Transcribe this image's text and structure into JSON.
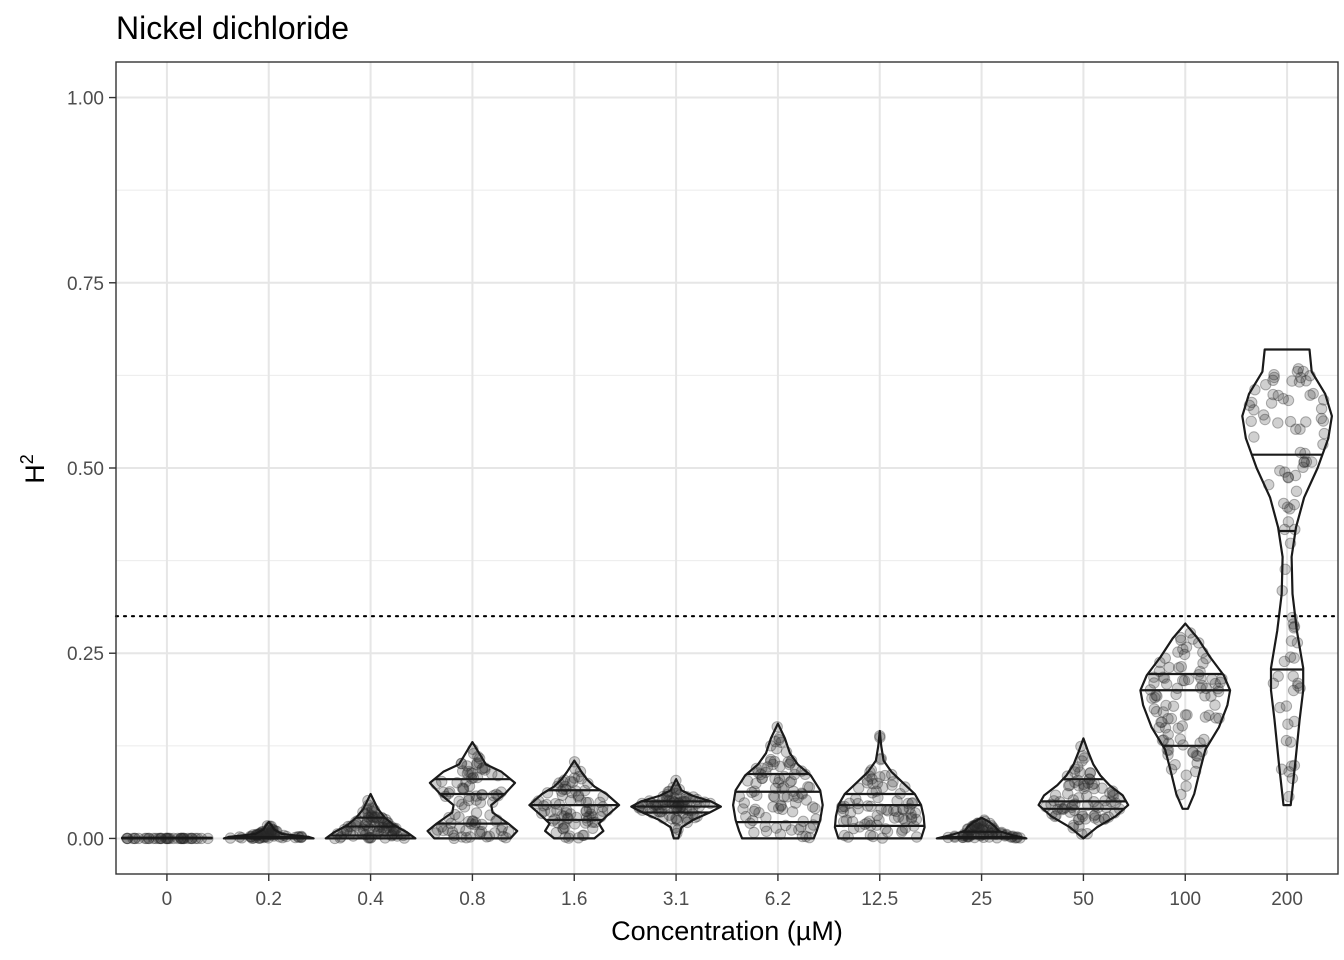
{
  "chart_data": {
    "type": "violin",
    "title": "Nickel dichloride",
    "xlabel": "Concentration (µM)",
    "ylabel": "H",
    "ylabel_superscript": "2",
    "ylim": [
      -0.048,
      1.048
    ],
    "yticks": [
      "0.00",
      "0.25",
      "0.50",
      "0.75",
      "1.00"
    ],
    "ytick_values": [
      0,
      0.25,
      0.5,
      0.75,
      1.0
    ],
    "grid": true,
    "reference_line": {
      "y": 0.3,
      "style": "dotted"
    },
    "categories": [
      "0",
      "0.2",
      "0.4",
      "0.8",
      "1.6",
      "3.1",
      "6.2",
      "12.5",
      "25",
      "50",
      "100",
      "200"
    ],
    "groups": [
      {
        "category": "0",
        "min": 0.0,
        "max": 0.0,
        "quartiles": [
          0.0,
          0.0,
          0.0
        ],
        "profile": [
          [
            0,
            1
          ],
          [
            0.001,
            1
          ]
        ],
        "n_points": 40
      },
      {
        "category": "0.2",
        "min": 0.0,
        "max": 0.022,
        "quartiles": [
          0.0,
          0.0,
          0.002
        ],
        "profile": [
          [
            0,
            1
          ],
          [
            0.002,
            0.9
          ],
          [
            0.006,
            0.3
          ],
          [
            0.012,
            0.12
          ],
          [
            0.018,
            0.06
          ],
          [
            0.022,
            0.0
          ]
        ],
        "n_points": 60
      },
      {
        "category": "0.4",
        "min": 0.0,
        "max": 0.06,
        "quartiles": [
          0.004,
          0.016,
          0.028
        ],
        "profile": [
          [
            0,
            1
          ],
          [
            0.008,
            0.82
          ],
          [
            0.018,
            0.52
          ],
          [
            0.028,
            0.32
          ],
          [
            0.04,
            0.16
          ],
          [
            0.05,
            0.08
          ],
          [
            0.06,
            0.0
          ]
        ],
        "n_points": 80
      },
      {
        "category": "0.8",
        "min": 0.0,
        "max": 0.13,
        "quartiles": [
          0.02,
          0.06,
          0.08
        ],
        "profile": [
          [
            0,
            0.85
          ],
          [
            0.01,
            1
          ],
          [
            0.02,
            0.8
          ],
          [
            0.035,
            0.45
          ],
          [
            0.045,
            0.42
          ],
          [
            0.06,
            0.72
          ],
          [
            0.075,
            0.95
          ],
          [
            0.09,
            0.65
          ],
          [
            0.1,
            0.3
          ],
          [
            0.115,
            0.15
          ],
          [
            0.13,
            0.0
          ]
        ],
        "n_points": 90
      },
      {
        "category": "1.6",
        "min": 0.0,
        "max": 0.105,
        "quartiles": [
          0.025,
          0.045,
          0.065
        ],
        "profile": [
          [
            0,
            0.45
          ],
          [
            0.01,
            0.65
          ],
          [
            0.02,
            0.55
          ],
          [
            0.03,
            0.72
          ],
          [
            0.045,
            1
          ],
          [
            0.06,
            0.72
          ],
          [
            0.07,
            0.45
          ],
          [
            0.08,
            0.28
          ],
          [
            0.09,
            0.16
          ],
          [
            0.105,
            0.0
          ]
        ],
        "n_points": 80
      },
      {
        "category": "3.1",
        "min": 0.0,
        "max": 0.08,
        "quartiles": [
          0.035,
          0.043,
          0.05
        ],
        "profile": [
          [
            0,
            0.05
          ],
          [
            0.015,
            0.12
          ],
          [
            0.025,
            0.38
          ],
          [
            0.035,
            0.75
          ],
          [
            0.043,
            1
          ],
          [
            0.05,
            0.78
          ],
          [
            0.058,
            0.35
          ],
          [
            0.065,
            0.12
          ],
          [
            0.08,
            0.0
          ]
        ],
        "n_points": 80
      },
      {
        "category": "6.2",
        "min": 0.0,
        "max": 0.155,
        "quartiles": [
          0.022,
          0.063,
          0.087
        ],
        "profile": [
          [
            0,
            0.72
          ],
          [
            0.01,
            0.78
          ],
          [
            0.025,
            0.85
          ],
          [
            0.045,
            0.9
          ],
          [
            0.065,
            0.85
          ],
          [
            0.085,
            0.66
          ],
          [
            0.1,
            0.4
          ],
          [
            0.115,
            0.24
          ],
          [
            0.135,
            0.14
          ],
          [
            0.155,
            0.0
          ]
        ],
        "n_points": 90
      },
      {
        "category": "12.5",
        "min": 0.0,
        "max": 0.145,
        "quartiles": [
          0.017,
          0.045,
          0.06
        ],
        "profile": [
          [
            0,
            0.85
          ],
          [
            0.015,
            0.92
          ],
          [
            0.03,
            0.9
          ],
          [
            0.045,
            0.85
          ],
          [
            0.06,
            0.72
          ],
          [
            0.075,
            0.48
          ],
          [
            0.09,
            0.24
          ],
          [
            0.105,
            0.08
          ],
          [
            0.125,
            0.03
          ],
          [
            0.145,
            0.0
          ]
        ],
        "n_points": 80
      },
      {
        "category": "25",
        "min": 0.0,
        "max": 0.028,
        "quartiles": [
          0.0,
          0.002,
          0.009
        ],
        "profile": [
          [
            0,
            1
          ],
          [
            0.004,
            0.72
          ],
          [
            0.01,
            0.38
          ],
          [
            0.016,
            0.3
          ],
          [
            0.022,
            0.18
          ],
          [
            0.028,
            0.0
          ]
        ],
        "n_points": 70
      },
      {
        "category": "50",
        "min": 0.0,
        "max": 0.135,
        "quartiles": [
          0.04,
          0.05,
          0.08
        ],
        "profile": [
          [
            0,
            0.0
          ],
          [
            0.015,
            0.3
          ],
          [
            0.03,
            0.72
          ],
          [
            0.045,
            1
          ],
          [
            0.058,
            0.88
          ],
          [
            0.072,
            0.58
          ],
          [
            0.085,
            0.38
          ],
          [
            0.1,
            0.22
          ],
          [
            0.118,
            0.1
          ],
          [
            0.135,
            0.0
          ]
        ],
        "n_points": 80
      },
      {
        "category": "100",
        "min": 0.04,
        "max": 0.29,
        "quartiles": [
          0.125,
          0.2,
          0.222
        ],
        "profile": [
          [
            0.04,
            0.06
          ],
          [
            0.06,
            0.2
          ],
          [
            0.09,
            0.32
          ],
          [
            0.12,
            0.45
          ],
          [
            0.15,
            0.75
          ],
          [
            0.18,
            0.94
          ],
          [
            0.2,
            1
          ],
          [
            0.22,
            0.86
          ],
          [
            0.245,
            0.55
          ],
          [
            0.27,
            0.28
          ],
          [
            0.29,
            0.0
          ]
        ],
        "n_points": 90
      },
      {
        "category": "200",
        "min": 0.045,
        "max": 0.66,
        "quartiles": [
          0.228,
          0.415,
          0.518
        ],
        "profile": [
          [
            0.045,
            0.08
          ],
          [
            0.1,
            0.18
          ],
          [
            0.16,
            0.28
          ],
          [
            0.2,
            0.36
          ],
          [
            0.23,
            0.36
          ],
          [
            0.28,
            0.22
          ],
          [
            0.33,
            0.12
          ],
          [
            0.38,
            0.1
          ],
          [
            0.42,
            0.2
          ],
          [
            0.46,
            0.38
          ],
          [
            0.5,
            0.68
          ],
          [
            0.54,
            0.92
          ],
          [
            0.57,
            1
          ],
          [
            0.6,
            0.85
          ],
          [
            0.63,
            0.55
          ],
          [
            0.66,
            0.5
          ]
        ],
        "n_points": 90
      }
    ]
  }
}
